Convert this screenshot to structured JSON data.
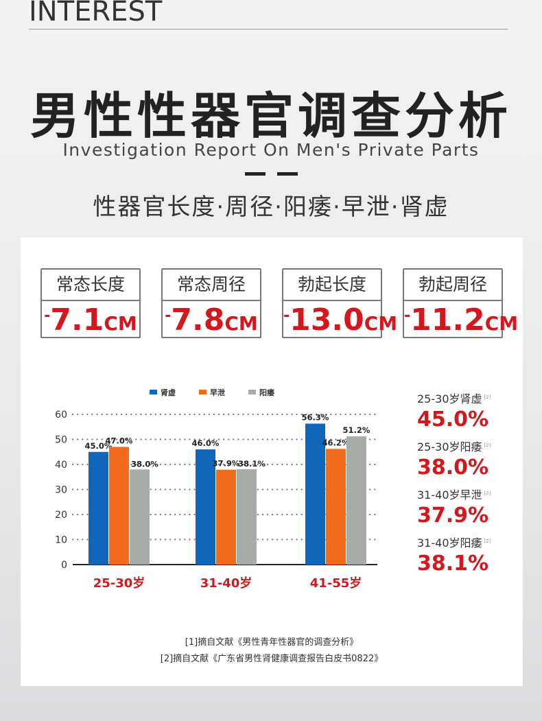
{
  "header": {
    "word": "INTEREST",
    "title": "男性性器官调查分析",
    "subtitle_en": "Investigation Report On Men's Private Parts",
    "subtitle_cn": "性器官长度·周径·阳痿·早泄·肾虚"
  },
  "cards": [
    {
      "label": "常态长度",
      "minus": "-",
      "value": "7.1",
      "unit": "CM"
    },
    {
      "label": "常态周径",
      "minus": "-",
      "value": "7.8",
      "unit": "CM"
    },
    {
      "label": "勃起长度",
      "minus": "-",
      "value": "13.0",
      "unit": "CM"
    },
    {
      "label": "勃起周径",
      "minus": "-",
      "value": "11.2",
      "unit": "CM"
    }
  ],
  "chart_data": {
    "type": "bar",
    "categories": [
      "25-30岁",
      "31-40岁",
      "41-55岁"
    ],
    "series": [
      {
        "name": "肾虚",
        "values": [
          45.0,
          46.0,
          56.3
        ],
        "labels": [
          "45.0%",
          "46.0%",
          "56.3%"
        ],
        "color": "#1066b8"
      },
      {
        "name": "早泄",
        "values": [
          47.0,
          37.9,
          46.2
        ],
        "labels": [
          "47.0%",
          "37.9%",
          "46.2%"
        ],
        "color": "#f26b1d"
      },
      {
        "name": "阳痿",
        "values": [
          38.0,
          38.1,
          51.2
        ],
        "labels": [
          "38.0%",
          "38.1%",
          "51.2%"
        ],
        "color": "#a8aca8"
      }
    ],
    "yticks": [
      "0",
      "10",
      "20",
      "30",
      "40",
      "50",
      "60"
    ],
    "ylim": [
      0,
      60
    ],
    "grid": true,
    "legend": "top-center",
    "category_color": "#d5161c"
  },
  "stats": [
    {
      "label": "25-30岁肾虚",
      "ref": "[2]",
      "value": "45.0%"
    },
    {
      "label": "25-30岁阳痿",
      "ref": "[2]",
      "value": "38.0%"
    },
    {
      "label": "31-40岁早泄",
      "ref": "[2]",
      "value": "37.9%"
    },
    {
      "label": "31-40岁阳痿",
      "ref": "[2]",
      "value": "38.1%"
    }
  ],
  "references": [
    "[1]摘自文献《男性青年性器官的调查分析》",
    "[2]摘自文献《广东省男性肾健康调查报告白皮书0822》"
  ]
}
